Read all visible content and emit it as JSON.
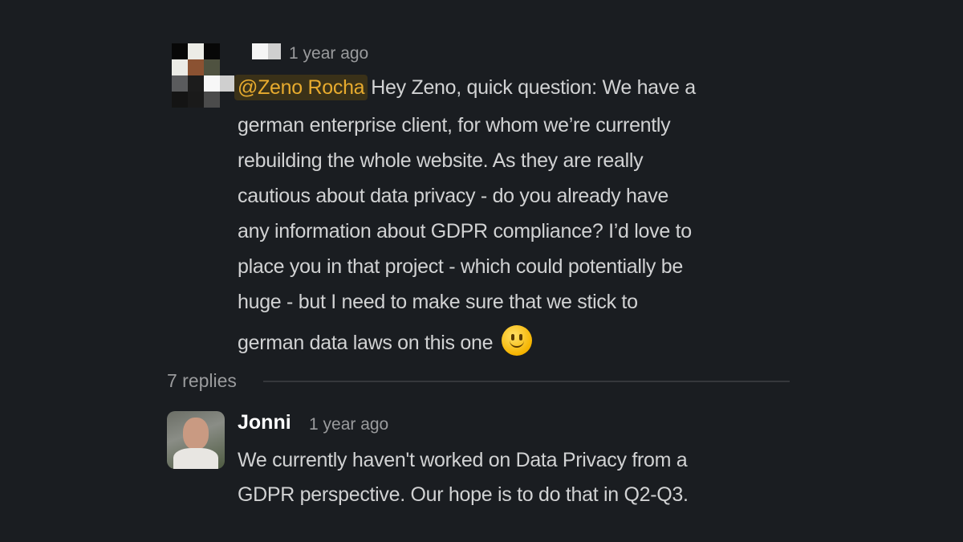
{
  "parent_message": {
    "author_redacted": true,
    "timestamp": "1 year ago",
    "mention": "@Zeno Rocha",
    "lines": [
      "Hey Zeno, quick question: We have a",
      "german enterprise client, for whom we’re currently",
      "rebuilding the whole website. As they are really",
      "cautious about data privacy - do you already have",
      "any information about GDPR compliance? I’d love to",
      "place you in that project - which could potentially be",
      "huge - but I need to make sure that we stick to",
      "german data laws on this one"
    ],
    "emoji": "slightly-smiling-face"
  },
  "thread": {
    "replies_label": "7 replies"
  },
  "reply": {
    "author": "Jonni",
    "timestamp": "1 year ago",
    "lines": [
      "We currently haven't worked on Data Privacy from a",
      "GDPR perspective. Our hope is to do that in Q2-Q3."
    ]
  },
  "colors": {
    "background": "#1a1d21",
    "mention_text": "#e8ab2e",
    "mention_bg": "#3a3118",
    "text": "#d1d2d3"
  }
}
